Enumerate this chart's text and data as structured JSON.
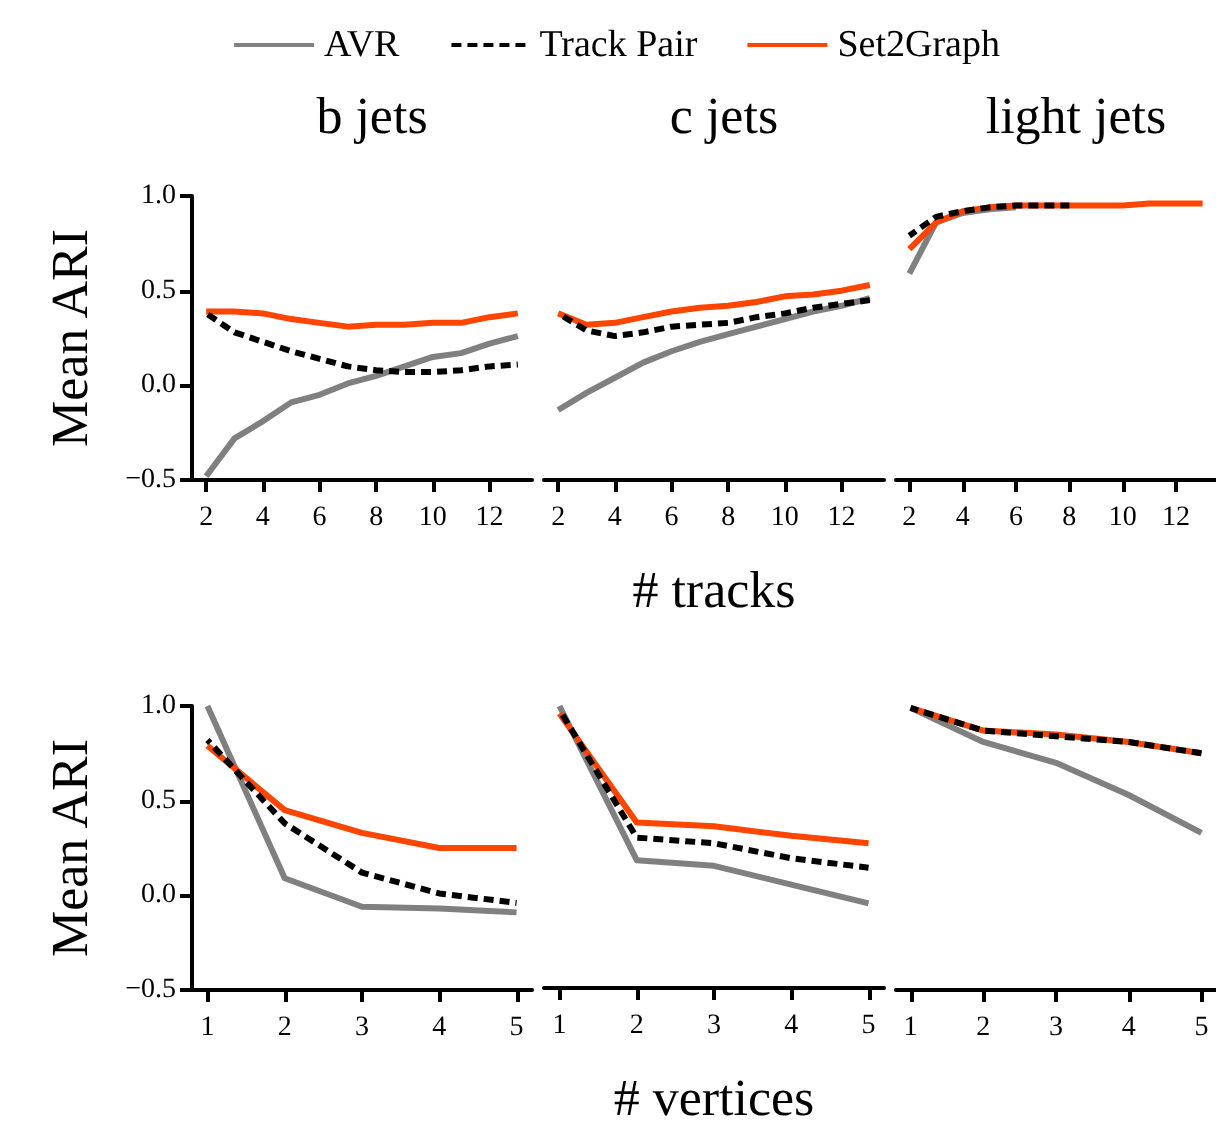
{
  "chart_data": [
    {
      "type": "line",
      "title": "b jets",
      "ylabel": "Mean ARI",
      "legend": "top",
      "x": [
        2,
        3,
        4,
        5,
        6,
        7,
        8,
        9,
        10,
        11,
        12,
        13
      ],
      "xlim": [
        1.5,
        13.5
      ],
      "xticks": [
        2,
        4,
        6,
        8,
        10,
        12
      ],
      "ylim": [
        -0.5,
        1.0
      ],
      "yticks": [
        {
          "value": -0.5,
          "label": "−0.5"
        },
        {
          "value": 0,
          "label": "0.0"
        },
        0.5,
        {
          "value": 1,
          "label": "1.0"
        }
      ],
      "series": [
        {
          "name": "AVR",
          "color": "#808080",
          "line_style": "solid",
          "values": [
            -0.48,
            -0.28,
            -0.19,
            -0.09,
            -0.05,
            0.01,
            0.05,
            0.1,
            0.15,
            0.17,
            0.22,
            0.26
          ]
        },
        {
          "name": "Track Pair",
          "color": "#000000",
          "line_style": "dashed",
          "values": [
            0.38,
            0.28,
            0.23,
            0.18,
            0.14,
            0.1,
            0.08,
            0.07,
            0.07,
            0.08,
            0.1,
            0.11
          ]
        },
        {
          "name": "Set2Graph",
          "color": "#ff4500",
          "line_style": "solid",
          "values": [
            0.39,
            0.39,
            0.38,
            0.35,
            0.33,
            0.31,
            0.32,
            0.32,
            0.33,
            0.33,
            0.36,
            0.38
          ]
        }
      ]
    },
    {
      "type": "line",
      "title": "c jets",
      "xlabel": "# tracks",
      "tick_labels": "x",
      "x": [
        2,
        3,
        4,
        5,
        6,
        7,
        8,
        9,
        10,
        11,
        12,
        13
      ],
      "xlim": [
        1.5,
        13.5
      ],
      "xticks": [
        2,
        4,
        6,
        8,
        10,
        12
      ],
      "ylim": [
        -0.5,
        1.0
      ],
      "series": [
        {
          "color": "#808080",
          "line_style": "solid",
          "values": [
            -0.13,
            -0.04,
            0.04,
            0.12,
            0.18,
            0.23,
            0.27,
            0.31,
            0.35,
            0.39,
            0.42,
            0.46
          ]
        },
        {
          "color": "#000000",
          "line_style": "dashed",
          "values": [
            0.38,
            0.29,
            0.26,
            0.28,
            0.31,
            0.32,
            0.33,
            0.36,
            0.38,
            0.41,
            0.43,
            0.45
          ]
        },
        {
          "color": "#ff4500",
          "line_style": "solid",
          "values": [
            0.38,
            0.32,
            0.33,
            0.36,
            0.39,
            0.41,
            0.42,
            0.44,
            0.47,
            0.48,
            0.5,
            0.53
          ]
        }
      ]
    },
    {
      "type": "line",
      "title": "light jets",
      "tick_labels": "x",
      "x": [
        2,
        3,
        4,
        5,
        6,
        7,
        8,
        9,
        10,
        11,
        12,
        13
      ],
      "xlim": [
        1.5,
        13.5
      ],
      "xticks": [
        2,
        4,
        6,
        8,
        10,
        12
      ],
      "ylim": [
        -0.5,
        1.0
      ],
      "series": [
        {
          "color": "#808080",
          "line_style": "solid",
          "values": [
            0.59,
            0.86,
            0.91,
            0.93,
            0.94,
            null,
            null,
            null,
            null,
            null,
            null,
            null
          ]
        },
        {
          "color": "#000000",
          "line_style": "dashed",
          "values": [
            0.79,
            0.89,
            0.92,
            0.94,
            0.95,
            0.95,
            0.95,
            null,
            null,
            null,
            null,
            null
          ]
        },
        {
          "color": "#ff4500",
          "line_style": "solid",
          "values": [
            0.72,
            0.86,
            0.92,
            0.94,
            0.95,
            0.95,
            0.95,
            0.95,
            0.95,
            0.96,
            0.96,
            0.96
          ]
        }
      ]
    },
    {
      "type": "line",
      "ylabel": "Mean ARI",
      "x": [
        1,
        2,
        3,
        4,
        5
      ],
      "xlim": [
        0.8,
        5.2
      ],
      "xticks": [
        1,
        2,
        3,
        4,
        5
      ],
      "ylim": [
        -0.5,
        1.0
      ],
      "yticks": [
        {
          "value": -0.5,
          "label": "−0.5"
        },
        {
          "value": 0,
          "label": "0.0"
        },
        0.5,
        {
          "value": 1,
          "label": "1.0"
        }
      ],
      "series": [
        {
          "color": "#808080",
          "line_style": "solid",
          "values": [
            1.0,
            0.09,
            -0.06,
            -0.07,
            -0.09
          ]
        },
        {
          "color": "#000000",
          "line_style": "dashed",
          "values": [
            0.82,
            0.38,
            0.12,
            0.01,
            -0.04
          ]
        },
        {
          "color": "#ff4500",
          "line_style": "solid",
          "values": [
            0.79,
            0.45,
            0.33,
            0.25,
            0.25
          ]
        }
      ]
    },
    {
      "type": "line",
      "xlabel": "# vertices",
      "tick_labels": "x",
      "x": [
        1,
        2,
        3,
        4,
        5
      ],
      "xlim": [
        0.8,
        5.2
      ],
      "xticks": [
        1,
        2,
        3,
        4,
        5
      ],
      "ylim": [
        -0.5,
        1.0
      ],
      "series": [
        {
          "color": "#808080",
          "line_style": "solid",
          "values": [
            1.0,
            0.18,
            0.15,
            0.05,
            -0.05
          ]
        },
        {
          "color": "#000000",
          "line_style": "dashed",
          "values": [
            0.98,
            0.3,
            0.27,
            0.19,
            0.14
          ]
        },
        {
          "color": "#ff4500",
          "line_style": "solid",
          "values": [
            0.96,
            0.38,
            0.36,
            0.31,
            0.27
          ]
        }
      ]
    },
    {
      "type": "line",
      "tick_labels": "x",
      "x": [
        1,
        2,
        3,
        4,
        5
      ],
      "xlim": [
        0.8,
        5.2
      ],
      "xticks": [
        1,
        2,
        3,
        4,
        5
      ],
      "ylim": [
        -0.5,
        1.0
      ],
      "series": [
        {
          "color": "#808080",
          "line_style": "solid",
          "values": [
            0.99,
            0.81,
            0.7,
            0.53,
            0.33
          ]
        },
        {
          "color": "#000000",
          "line_style": "dashed",
          "values": [
            0.99,
            0.87,
            0.84,
            0.81,
            0.75
          ]
        },
        {
          "color": "#ff4500",
          "line_style": "solid",
          "values": [
            0.99,
            0.87,
            0.85,
            0.81,
            0.75
          ]
        }
      ]
    }
  ]
}
